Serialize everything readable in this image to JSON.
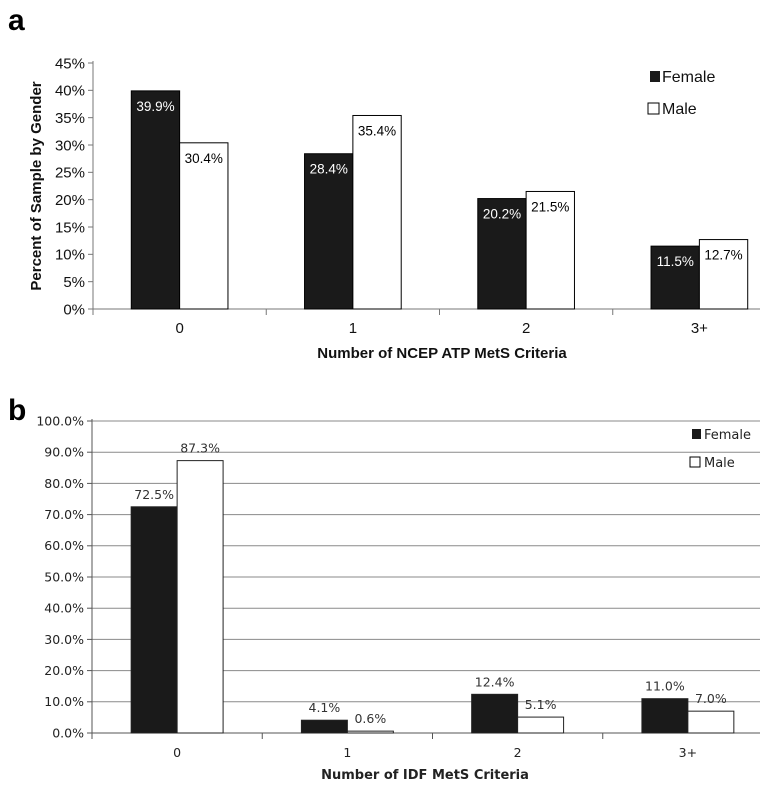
{
  "panels": {
    "a": {
      "letter": "a",
      "ylabel": "Percent of Sample by Gender",
      "xlabel": "Number of NCEP ATP MetS  Criteria",
      "legend": {
        "female": "Female",
        "male": "Male"
      },
      "yticks": [
        "0%",
        "5%",
        "10%",
        "15%",
        "20%",
        "25%",
        "30%",
        "35%",
        "40%",
        "45%"
      ]
    },
    "b": {
      "letter": "b",
      "xlabel": "Number of IDF MetS Criteria",
      "legend": {
        "female": "Female",
        "male": "Male"
      },
      "yticks": [
        "0.0%",
        "10.0%",
        "20.0%",
        "30.0%",
        "40.0%",
        "50.0%",
        "60.0%",
        "70.0%",
        "80.0%",
        "90.0%",
        "100.0%"
      ]
    }
  },
  "chart_data": [
    {
      "type": "bar",
      "panel": "a",
      "categories": [
        "0",
        "1",
        "2",
        "3+"
      ],
      "series": [
        {
          "name": "Female",
          "values": [
            39.9,
            28.4,
            20.2,
            11.5
          ],
          "labels": [
            "39.9%",
            "28.4%",
            "20.2%",
            "11.5%"
          ],
          "color": "#1a1a1a"
        },
        {
          "name": "Male",
          "values": [
            30.4,
            35.4,
            21.5,
            12.7
          ],
          "labels": [
            "30.4%",
            "35.4%",
            "21.5%",
            "12.7%"
          ],
          "color": "#ffffff"
        }
      ],
      "ylabel": "Percent of Sample by Gender",
      "xlabel": "Number of NCEP ATP MetS  Criteria",
      "ylim": [
        0,
        45
      ],
      "grid": false,
      "legend_position": "top-right"
    },
    {
      "type": "bar",
      "panel": "b",
      "categories": [
        "0",
        "1",
        "2",
        "3+"
      ],
      "series": [
        {
          "name": "Female",
          "values": [
            72.5,
            4.1,
            12.4,
            11.0
          ],
          "labels": [
            "72.5%",
            "4.1%",
            "12.4%",
            "11.0%"
          ],
          "color": "#1a1a1a"
        },
        {
          "name": "Male",
          "values": [
            87.3,
            0.6,
            5.1,
            7.0
          ],
          "labels": [
            "87.3%",
            "0.6%",
            "5.1%",
            "7.0%"
          ],
          "color": "#ffffff"
        }
      ],
      "xlabel": "Number of IDF MetS Criteria",
      "ylim": [
        0,
        100
      ],
      "grid": true,
      "legend_position": "top-right"
    }
  ]
}
